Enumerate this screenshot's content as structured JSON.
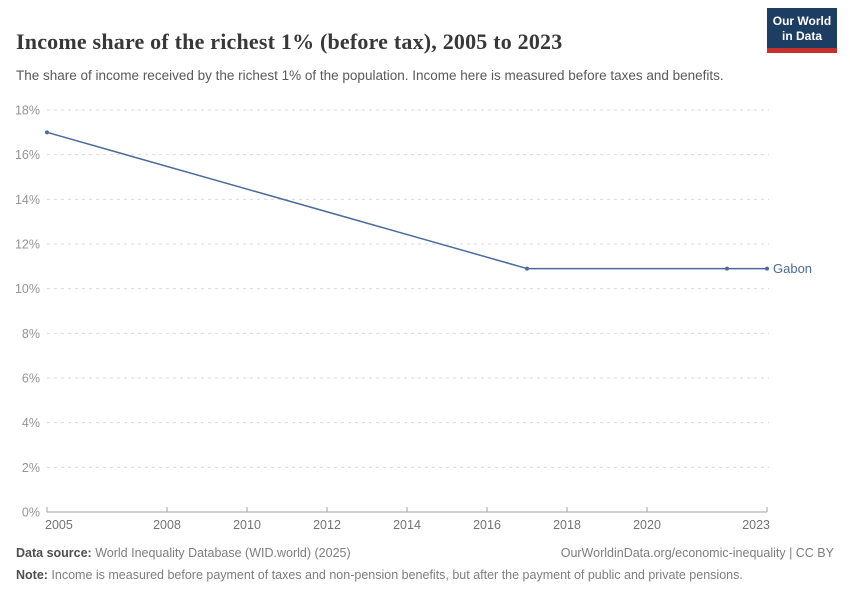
{
  "header": {
    "title": "Income share of the richest 1% (before tax), 2005 to 2023",
    "subtitle": "The share of income received by the richest 1% of the population. Income here is measured before taxes and benefits.",
    "logo": {
      "line1": "Our World",
      "line2": "in Data",
      "bg_color": "#1d3d63",
      "bar_color": "#c5302c"
    }
  },
  "chart_data": {
    "type": "line",
    "title": "Income share of the richest 1% (before tax), 2005 to 2023",
    "xlabel": "",
    "ylabel": "",
    "xlim": [
      2005,
      2023
    ],
    "ylim": [
      0,
      18
    ],
    "xticks": [
      2005,
      2008,
      2010,
      2012,
      2014,
      2016,
      2018,
      2020,
      2023
    ],
    "yticks": [
      0,
      2,
      4,
      6,
      8,
      10,
      12,
      14,
      16,
      18
    ],
    "y_suffix": "%",
    "grid": "horizontal-dashed",
    "legend": "line-end-label",
    "series": [
      {
        "name": "Gabon",
        "color": "#4c6a9c",
        "points": [
          [
            2005,
            17.0
          ],
          [
            2017,
            10.9
          ],
          [
            2022,
            10.9
          ],
          [
            2023,
            10.9
          ]
        ]
      }
    ]
  },
  "footer": {
    "source_label": "Data source:",
    "source_text": " World Inequality Database (WID.world) (2025)",
    "link_text": "OurWorldinData.org/economic-inequality | CC BY",
    "note_label": "Note:",
    "note_text": " Income is measured before payment of taxes and non-pension benefits, but after the payment of public and private pensions."
  }
}
